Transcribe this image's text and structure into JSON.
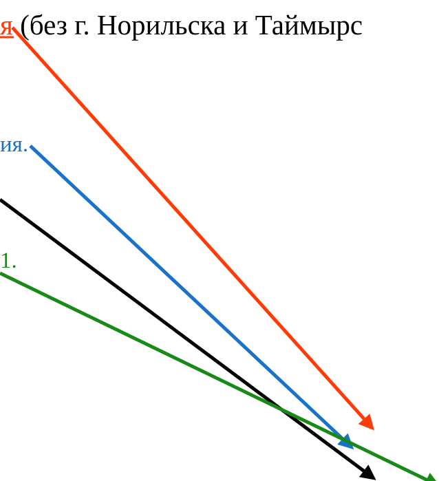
{
  "colors": {
    "background": "#ffffff",
    "red": "#ff3b0a",
    "blue": "#1a73c6",
    "black": "#000000",
    "green": "#178a17",
    "text": "#000000"
  },
  "labels": {
    "red_fragment": "я",
    "top_text": " (без г. Норильска и Таймырс",
    "blue_fragment": "ия.",
    "green_fragment": "1."
  },
  "arrows": [
    {
      "id": "red",
      "color_key": "red"
    },
    {
      "id": "blue",
      "color_key": "blue"
    },
    {
      "id": "black",
      "color_key": "black"
    },
    {
      "id": "green",
      "color_key": "green"
    }
  ]
}
